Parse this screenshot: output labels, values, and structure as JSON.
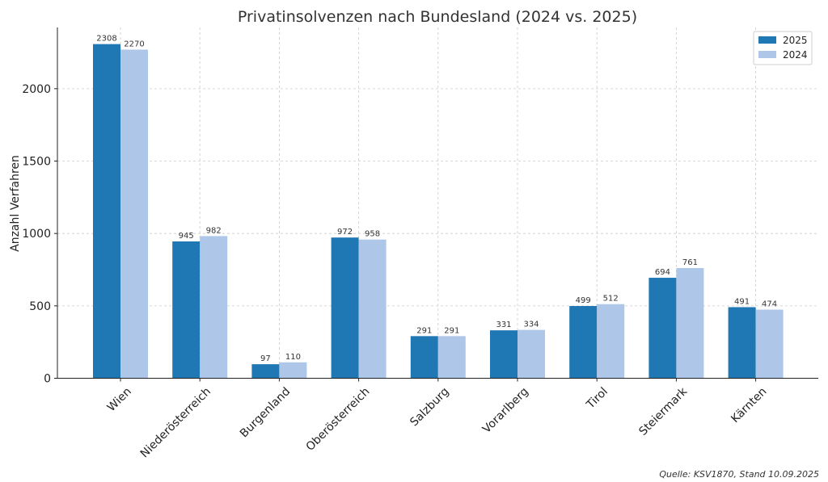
{
  "chart_data": {
    "type": "bar",
    "title": "Privatinsolvenzen nach Bundesland (2024 vs. 2025)",
    "xlabel": "",
    "ylabel": "Anzahl Verfahren",
    "categories": [
      "Wien",
      "Niederösterreich",
      "Burgenland",
      "Oberösterreich",
      "Salzburg",
      "Vorarlberg",
      "Tirol",
      "Steiermark",
      "Kärnten"
    ],
    "series": [
      {
        "name": "2025",
        "color": "#1f77b4",
        "values": [
          2308,
          945,
          97,
          972,
          291,
          331,
          499,
          694,
          491
        ]
      },
      {
        "name": "2024",
        "color": "#aec7e8",
        "values": [
          2270,
          982,
          110,
          958,
          291,
          334,
          512,
          761,
          474
        ]
      }
    ],
    "ylim": [
      0,
      2423
    ],
    "yticks": [
      0,
      500,
      1000,
      1500,
      2000
    ],
    "grid": true,
    "legend": "top-right",
    "source": "Quelle: KSV1870, Stand 10.09.2025"
  }
}
